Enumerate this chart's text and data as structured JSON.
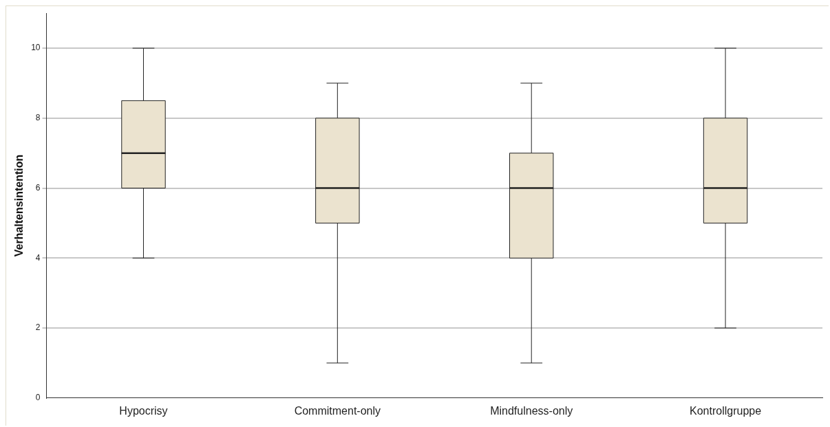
{
  "chart_data": {
    "type": "box",
    "ylabel": "Verhaltensintention",
    "categories": [
      "Hypocrisy",
      "Commitment-only",
      "Mindfulness-only",
      "Kontrollgruppe"
    ],
    "series": [
      {
        "color": "#ebe3cf",
        "boxes": [
          {
            "low": 4,
            "q1": 6,
            "median": 7,
            "q3": 8.5,
            "high": 10
          },
          {
            "low": 1,
            "q1": 5,
            "median": 6,
            "q3": 8,
            "high": 9
          },
          {
            "low": 1,
            "q1": 4,
            "median": 6,
            "q3": 7,
            "high": 9
          },
          {
            "low": 2,
            "q1": 5,
            "median": 6,
            "q3": 8,
            "high": 10
          }
        ]
      }
    ],
    "ylim": [
      0,
      11
    ],
    "yticks": [
      0,
      2,
      4,
      6,
      8,
      10
    ],
    "grid": "y"
  }
}
